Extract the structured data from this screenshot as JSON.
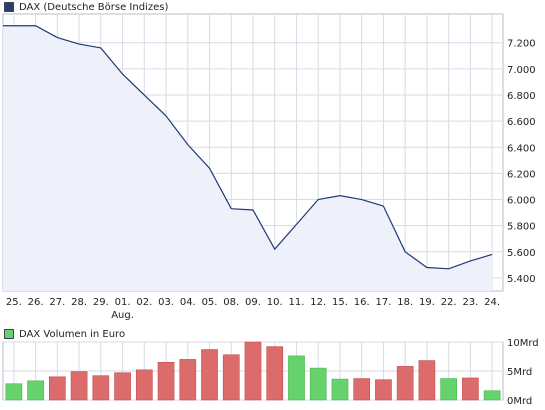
{
  "chart_data": [
    {
      "type": "area",
      "legend": "DAX (Deutsche Börse Indizes)",
      "x_labels": [
        "25.",
        "26.",
        "27.",
        "28.",
        "29.",
        "01.",
        "02.",
        "03.",
        "04.",
        "05.",
        "08.",
        "09.",
        "10.",
        "11.",
        "12.",
        "15.",
        "16.",
        "17.",
        "18.",
        "19.",
        "22.",
        "23.",
        "24."
      ],
      "month_label": "Aug.",
      "month_label_index": 5,
      "y": [
        7330,
        7330,
        7240,
        7190,
        7160,
        6960,
        6800,
        6640,
        6420,
        6240,
        5930,
        5920,
        5620,
        5810,
        6000,
        6030,
        6000,
        5950,
        5600,
        5480,
        5470,
        5530,
        5580
      ],
      "ylim": [
        5300,
        7420
      ],
      "yticks": [
        5400,
        5600,
        5800,
        6000,
        6200,
        6400,
        6600,
        6800,
        7000,
        7200
      ],
      "ytick_labels": [
        "5.400",
        "5.600",
        "5.800",
        "6.000",
        "6.200",
        "6.400",
        "6.600",
        "6.800",
        "7.000",
        "7.200"
      ],
      "grid": true,
      "colors": {
        "line": "#1f3a78",
        "fill": "#eef1fa",
        "legend_swatch": "#2c3e66",
        "grid": "#d9dbe6"
      }
    },
    {
      "type": "bar",
      "legend": "DAX Volumen in Euro",
      "values_mrd": [
        2.8,
        3.3,
        4.0,
        4.9,
        4.2,
        4.7,
        5.2,
        6.5,
        7.0,
        8.7,
        7.8,
        10.0,
        9.2,
        7.6,
        5.5,
        3.6,
        3.7,
        3.5,
        5.8,
        6.8,
        3.7,
        3.8,
        1.6
      ],
      "up_day": [
        true,
        true,
        false,
        false,
        false,
        false,
        false,
        false,
        false,
        false,
        false,
        false,
        false,
        true,
        true,
        true,
        false,
        false,
        false,
        false,
        true,
        false,
        true
      ],
      "ylim": [
        0,
        10
      ],
      "yticks": [
        0,
        5,
        10
      ],
      "ytick_labels": [
        "0Mrd",
        "5Mrd",
        "10Mrd"
      ],
      "colors": {
        "up": "#66d26b",
        "down": "#dc6b6b",
        "legend_swatch": "#66d26b"
      }
    }
  ]
}
